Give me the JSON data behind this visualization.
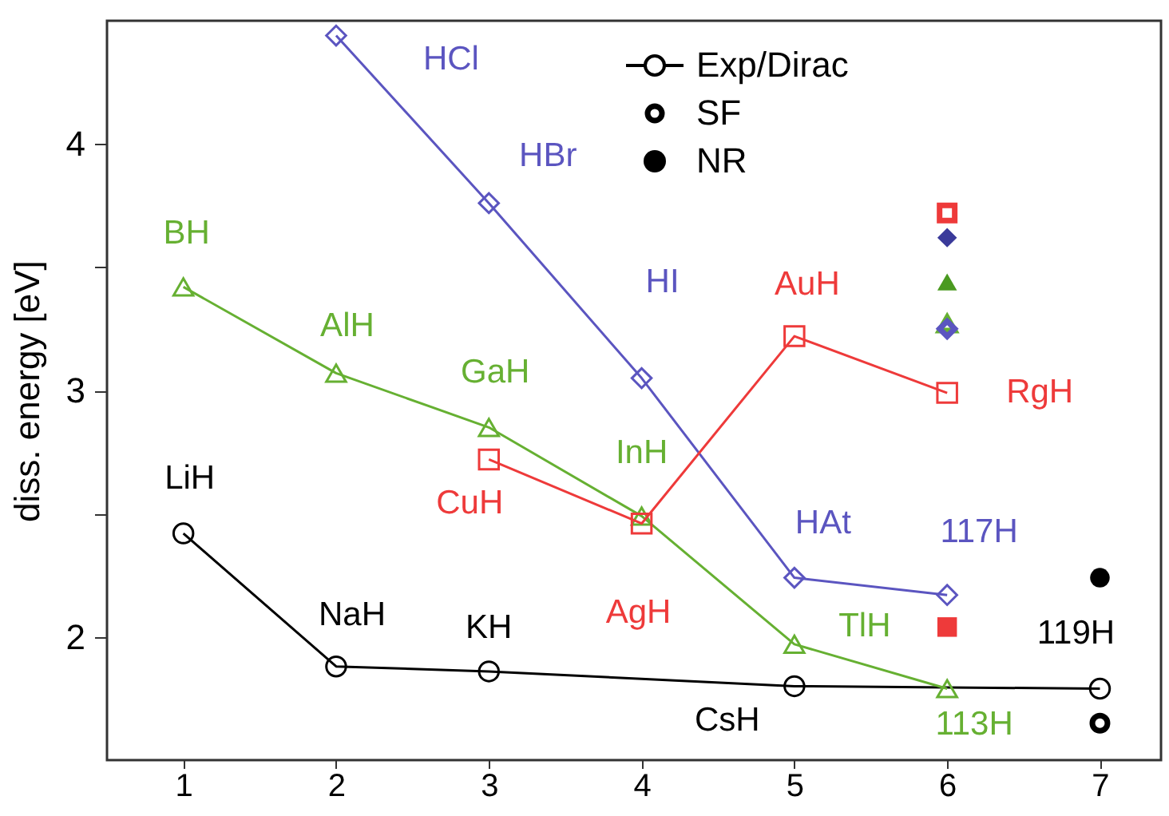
{
  "chart_data": {
    "type": "line",
    "ylabel": "diss. energy [eV]",
    "xlim": [
      0.5,
      7.4
    ],
    "xticks": [
      1,
      2,
      3,
      4,
      5,
      6,
      7
    ],
    "ylim": [
      1.5,
      4.5
    ],
    "yticks": [
      2,
      {
        "value": 2.5,
        "label": null
      },
      3,
      {
        "value": 3.5,
        "label": null
      },
      4
    ],
    "legend": "top",
    "series": [
      {
        "name": "Exp/Dirac",
        "marker": "circle",
        "color": "#000000",
        "x": [
          1,
          2,
          3,
          5,
          7
        ],
        "values": [
          2.42,
          1.88,
          1.86,
          1.8,
          1.79
        ]
      },
      {
        "marker": "triangle",
        "color": "#66b032",
        "x": [
          1,
          2,
          3,
          4,
          5,
          6
        ],
        "values": [
          3.42,
          3.07,
          2.85,
          2.49,
          1.97,
          1.79
        ]
      },
      {
        "marker": "diamond",
        "color": "#5b55c0",
        "x": [
          2,
          3,
          4,
          5,
          6
        ],
        "values": [
          4.44,
          3.76,
          3.05,
          2.24,
          2.17
        ]
      },
      {
        "marker": "square",
        "color": "#ee3a3a",
        "x": [
          3,
          4,
          5,
          6
        ],
        "values": [
          2.72,
          2.46,
          3.22,
          2.99
        ]
      },
      {
        "name": "SF",
        "type": "scatter",
        "marker": "circle",
        "color": "#000000",
        "x": [
          7
        ],
        "values": [
          1.65
        ]
      },
      {
        "type": "scatter",
        "marker": "square",
        "color": "#ee3a3a",
        "x": [
          6
        ],
        "values": [
          3.72
        ]
      },
      {
        "type": "scatter",
        "marker": "triangle",
        "color": "#66b032",
        "x": [
          6
        ],
        "values": [
          3.27
        ]
      },
      {
        "type": "scatter",
        "marker": "diamond",
        "color": "#5b55c0",
        "x": [
          6
        ],
        "values": [
          3.25
        ]
      },
      {
        "name": "NR",
        "type": "scatter",
        "marker": "circle",
        "color": "#000000",
        "x": [
          7
        ],
        "values": [
          2.24
        ]
      },
      {
        "type": "scatter",
        "marker": "diamond",
        "color": "#3a3a9a",
        "x": [
          6
        ],
        "values": [
          3.62
        ]
      },
      {
        "type": "scatter",
        "marker": "triangle",
        "color": "#4a9a20",
        "x": [
          6
        ],
        "values": [
          3.44
        ]
      },
      {
        "type": "scatter",
        "marker": "square",
        "color": "#ee3a3a",
        "x": [
          6
        ],
        "values": [
          2.04
        ]
      }
    ],
    "annotations": [
      {
        "text": "LiH",
        "x": 1,
        "y": 2.42
      },
      {
        "text": "NaH",
        "x": 2,
        "y": 1.88
      },
      {
        "text": "KH",
        "x": 3,
        "y": 1.86
      },
      {
        "text": "CsH",
        "x": 5,
        "y": 1.8
      },
      {
        "text": "119H",
        "x": 7,
        "y": 1.79
      },
      {
        "text": "BH",
        "x": 1,
        "y": 3.42
      },
      {
        "text": "AlH",
        "x": 2,
        "y": 3.07
      },
      {
        "text": "GaH",
        "x": 3,
        "y": 2.85
      },
      {
        "text": "InH",
        "x": 4,
        "y": 2.49
      },
      {
        "text": "TlH",
        "x": 5,
        "y": 1.97
      },
      {
        "text": "113H",
        "x": 6,
        "y": 1.79
      },
      {
        "text": "HCl",
        "x": 2,
        "y": 4.44
      },
      {
        "text": "HBr",
        "x": 3,
        "y": 3.76
      },
      {
        "text": "HI",
        "x": 4,
        "y": 3.05
      },
      {
        "text": "HAt",
        "x": 5,
        "y": 2.24
      },
      {
        "text": "117H",
        "x": 6,
        "y": 2.17
      },
      {
        "text": "CuH",
        "x": 3,
        "y": 2.72
      },
      {
        "text": "AgH",
        "x": 4,
        "y": 2.46
      },
      {
        "text": "AuH",
        "x": 5,
        "y": 3.22
      },
      {
        "text": "RgH",
        "x": 6,
        "y": 2.99
      }
    ]
  }
}
